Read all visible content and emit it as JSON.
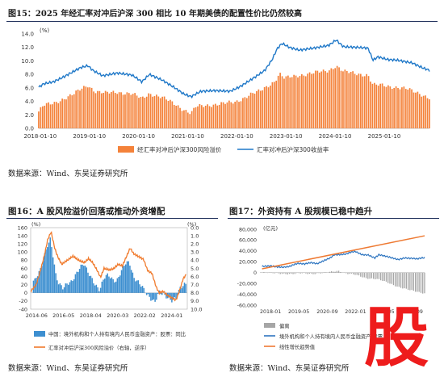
{
  "fig15": {
    "title": "图15：2025 年经汇率对冲后沪深 300 相比 10 年期美债的配置性价比仍然较高",
    "source": "数据来源：Wind、东吴证券研究所",
    "unit": "(%)",
    "chart_data": {
      "type": "bar",
      "y_ticks": [
        "14.0",
        "12.0",
        "10.0",
        "8.0",
        "6.0",
        "4.0",
        "2.0",
        "0.0"
      ],
      "ylim": [
        0,
        14
      ],
      "x_ticks": [
        "2018-01-10",
        "2019-01-10",
        "2020-01-10",
        "2021-01-10",
        "2022-01-10",
        "2023-01-10",
        "2024-01-10",
        "2025-01-10"
      ],
      "x_start": 2018.0,
      "x_end": 2025.95,
      "series": [
        {
          "name": "经汇率对冲后沪深300风险溢价",
          "type": "bar",
          "color": "#f4823a",
          "points": [
            [
              2018.0,
              2.5
            ],
            [
              2018.1,
              3.4
            ],
            [
              2018.3,
              3.7
            ],
            [
              2018.5,
              4.4
            ],
            [
              2018.7,
              5.0
            ],
            [
              2018.9,
              6.0
            ],
            [
              2019.0,
              6.4
            ],
            [
              2019.15,
              5.5
            ],
            [
              2019.35,
              5.2
            ],
            [
              2019.6,
              5.4
            ],
            [
              2019.9,
              5.1
            ],
            [
              2020.1,
              4.4
            ],
            [
              2020.25,
              5.2
            ],
            [
              2020.5,
              4.6
            ],
            [
              2020.75,
              3.7
            ],
            [
              2020.95,
              2.8
            ],
            [
              2021.1,
              2.2
            ],
            [
              2021.2,
              3.2
            ],
            [
              2021.5,
              3.5
            ],
            [
              2021.8,
              3.7
            ],
            [
              2022.0,
              3.9
            ],
            [
              2022.3,
              5.0
            ],
            [
              2022.5,
              5.5
            ],
            [
              2022.8,
              7.0
            ],
            [
              2022.9,
              8.1
            ],
            [
              2023.0,
              7.4
            ],
            [
              2023.3,
              7.9
            ],
            [
              2023.6,
              8.2
            ],
            [
              2023.9,
              8.6
            ],
            [
              2024.05,
              9.3
            ],
            [
              2024.2,
              8.4
            ],
            [
              2024.5,
              8.1
            ],
            [
              2024.7,
              7.9
            ],
            [
              2024.8,
              6.4
            ],
            [
              2025.0,
              6.4
            ],
            [
              2025.2,
              6.2
            ],
            [
              2025.5,
              5.8
            ],
            [
              2025.75,
              5.2
            ],
            [
              2025.95,
              4.5
            ]
          ]
        },
        {
          "name": "汇率对冲后沪深300收益率",
          "type": "line",
          "color": "#1f78c8",
          "points": [
            [
              2018.0,
              6.1
            ],
            [
              2018.1,
              6.6
            ],
            [
              2018.3,
              6.9
            ],
            [
              2018.5,
              7.6
            ],
            [
              2018.7,
              8.4
            ],
            [
              2018.85,
              9.0
            ],
            [
              2019.0,
              9.3
            ],
            [
              2019.1,
              8.6
            ],
            [
              2019.3,
              7.8
            ],
            [
              2019.6,
              8.2
            ],
            [
              2019.9,
              7.9
            ],
            [
              2020.1,
              6.9
            ],
            [
              2020.25,
              8.0
            ],
            [
              2020.5,
              7.2
            ],
            [
              2020.75,
              6.1
            ],
            [
              2020.95,
              5.1
            ],
            [
              2021.1,
              4.7
            ],
            [
              2021.3,
              5.5
            ],
            [
              2021.6,
              5.6
            ],
            [
              2021.9,
              5.5
            ],
            [
              2022.1,
              6.2
            ],
            [
              2022.4,
              7.6
            ],
            [
              2022.6,
              8.6
            ],
            [
              2022.75,
              10.2
            ],
            [
              2022.85,
              11.8
            ],
            [
              2022.95,
              12.6
            ],
            [
              2023.1,
              12.0
            ],
            [
              2023.3,
              11.6
            ],
            [
              2023.6,
              11.9
            ],
            [
              2023.9,
              12.3
            ],
            [
              2024.05,
              13.1
            ],
            [
              2024.2,
              12.1
            ],
            [
              2024.5,
              12.0
            ],
            [
              2024.7,
              11.9
            ],
            [
              2024.8,
              10.1
            ],
            [
              2024.9,
              10.6
            ],
            [
              2025.1,
              10.2
            ],
            [
              2025.3,
              10.1
            ],
            [
              2025.6,
              9.7
            ],
            [
              2025.8,
              9.0
            ],
            [
              2025.95,
              8.6
            ]
          ]
        }
      ]
    }
  },
  "fig16": {
    "title": "图16：A 股风险溢价回落或推动外资增配",
    "source": "数据来源：Wind、东吴证券研究所",
    "unit_left": "(%)",
    "unit_right": "(%)",
    "chart_data": {
      "type": "bar",
      "y_ticks_left": [
        "160",
        "140",
        "120",
        "100",
        "80",
        "60",
        "40",
        "20",
        "0",
        "-20",
        "-40"
      ],
      "ylim_left": [
        -40,
        160
      ],
      "y_ticks_right": [
        "0.0",
        "1.0",
        "2.0",
        "3.0",
        "4.0",
        "5.0",
        "6.0",
        "7.0",
        "8.0",
        "9.0",
        "10.0"
      ],
      "ylim_right": [
        0,
        10
      ],
      "right_axis_inverted": true,
      "x_ticks": [
        "2014-06",
        "2016-05",
        "2018-04",
        "2020-03",
        "2022-02",
        "2024-01"
      ],
      "x_start": 2014.0,
      "x_end": 2025.1,
      "series": [
        {
          "name": "中国：境外机构和个人持有境内人民币金融资产：股票：同比",
          "type": "bar",
          "color": "#3d8fd0",
          "points": [
            [
              2014.3,
              30
            ],
            [
              2014.7,
              55
            ],
            [
              2015.0,
              95
            ],
            [
              2015.2,
              120
            ],
            [
              2015.4,
              135
            ],
            [
              2015.6,
              90
            ],
            [
              2015.8,
              40
            ],
            [
              2016.0,
              20
            ],
            [
              2016.3,
              10
            ],
            [
              2016.6,
              25
            ],
            [
              2016.9,
              30
            ],
            [
              2017.2,
              45
            ],
            [
              2017.5,
              60
            ],
            [
              2017.8,
              70
            ],
            [
              2018.0,
              55
            ],
            [
              2018.3,
              40
            ],
            [
              2018.6,
              20
            ],
            [
              2018.9,
              5
            ],
            [
              2019.2,
              35
            ],
            [
              2019.5,
              45
            ],
            [
              2019.8,
              35
            ],
            [
              2020.1,
              30
            ],
            [
              2020.4,
              50
            ],
            [
              2020.7,
              70
            ],
            [
              2021.0,
              75
            ],
            [
              2021.3,
              40
            ],
            [
              2021.6,
              30
            ],
            [
              2021.9,
              15
            ],
            [
              2022.2,
              -5
            ],
            [
              2022.5,
              -15
            ],
            [
              2022.8,
              -20
            ],
            [
              2023.1,
              5
            ],
            [
              2023.4,
              -5
            ],
            [
              2023.7,
              -15
            ],
            [
              2024.0,
              -20
            ],
            [
              2024.3,
              -10
            ],
            [
              2024.6,
              15
            ],
            [
              2024.9,
              20
            ]
          ]
        },
        {
          "name": "汇率对冲后沪深300风险溢价（右轴，逆序）",
          "type": "line",
          "color": "#f07a2c",
          "axis": "right",
          "points": [
            [
              2014.0,
              7.8
            ],
            [
              2014.4,
              7.0
            ],
            [
              2014.7,
              5.2
            ],
            [
              2015.0,
              3.2
            ],
            [
              2015.2,
              1.5
            ],
            [
              2015.45,
              0.5
            ],
            [
              2015.7,
              2.5
            ],
            [
              2015.9,
              3.5
            ],
            [
              2016.2,
              4.5
            ],
            [
              2016.6,
              4.0
            ],
            [
              2017.0,
              3.5
            ],
            [
              2017.4,
              4.0
            ],
            [
              2017.8,
              4.3
            ],
            [
              2018.1,
              3.8
            ],
            [
              2018.4,
              4.3
            ],
            [
              2018.7,
              5.2
            ],
            [
              2018.95,
              6.1
            ],
            [
              2019.2,
              5.0
            ],
            [
              2019.6,
              5.2
            ],
            [
              2019.9,
              5.0
            ],
            [
              2020.2,
              4.5
            ],
            [
              2020.5,
              4.7
            ],
            [
              2020.8,
              3.5
            ],
            [
              2021.05,
              2.5
            ],
            [
              2021.3,
              3.2
            ],
            [
              2021.7,
              3.6
            ],
            [
              2022.0,
              3.9
            ],
            [
              2022.3,
              5.3
            ],
            [
              2022.6,
              5.6
            ],
            [
              2022.9,
              7.3
            ],
            [
              2023.1,
              8.0
            ],
            [
              2023.4,
              7.8
            ],
            [
              2023.7,
              8.3
            ],
            [
              2024.0,
              8.6
            ],
            [
              2024.3,
              8.9
            ],
            [
              2024.6,
              7.5
            ],
            [
              2024.8,
              6.3
            ],
            [
              2025.0,
              5.8
            ]
          ]
        }
      ]
    }
  },
  "fig17": {
    "title": "图17：外资持有 A 股规模已稳中趋升",
    "source": "数据来源：Wind、东吴证券研究所",
    "unit": "(亿元)",
    "chart_data": {
      "type": "line",
      "y_ticks": [
        "80,000",
        "60,000",
        "40,000",
        "20,000",
        "0",
        "-20,000",
        "-40,000",
        "-60,000"
      ],
      "ylim": [
        -60000,
        80000
      ],
      "x_ticks": [
        "2018-01",
        "2019-05",
        "2020-09",
        "2022-01",
        "2023-05",
        "2024-09"
      ],
      "x_start": 2017.5,
      "x_end": 2025.25,
      "series": [
        {
          "name": "偏离",
          "type": "bar",
          "color": "#a6a6a6",
          "points": [
            [
              2017.6,
              0
            ],
            [
              2018.0,
              -600
            ],
            [
              2018.5,
              -1500
            ],
            [
              2019.0,
              -2800
            ],
            [
              2019.5,
              -1000
            ],
            [
              2020.0,
              -2000
            ],
            [
              2020.5,
              -800
            ],
            [
              2020.9,
              2000
            ],
            [
              2021.2,
              3500
            ],
            [
              2021.6,
              -2000
            ],
            [
              2022.0,
              -4000
            ],
            [
              2022.5,
              -10000
            ],
            [
              2023.0,
              -12000
            ],
            [
              2023.5,
              -18000
            ],
            [
              2024.0,
              -26000
            ],
            [
              2024.5,
              -32000
            ],
            [
              2025.0,
              -36000
            ],
            [
              2025.25,
              -38000
            ]
          ]
        },
        {
          "name": "境外机构和个人持有境内人民币金融资产:股票",
          "type": "line",
          "color": "#2e75c0",
          "points": [
            [
              2017.6,
              11500
            ],
            [
              2018.0,
              12500
            ],
            [
              2018.3,
              10500
            ],
            [
              2018.6,
              10000
            ],
            [
              2018.9,
              11500
            ],
            [
              2019.1,
              15000
            ],
            [
              2019.3,
              17000
            ],
            [
              2019.6,
              16000
            ],
            [
              2019.9,
              18500
            ],
            [
              2020.2,
              16500
            ],
            [
              2020.5,
              22000
            ],
            [
              2020.8,
              27000
            ],
            [
              2021.0,
              33000
            ],
            [
              2021.2,
              33000
            ],
            [
              2021.5,
              34000
            ],
            [
              2021.8,
              38000
            ],
            [
              2022.0,
              39000
            ],
            [
              2022.3,
              33000
            ],
            [
              2022.6,
              32500
            ],
            [
              2022.9,
              27000
            ],
            [
              2023.1,
              33000
            ],
            [
              2023.4,
              30500
            ],
            [
              2023.7,
              27500
            ],
            [
              2024.0,
              24000
            ],
            [
              2024.3,
              27000
            ],
            [
              2024.6,
              26500
            ],
            [
              2024.9,
              25500
            ],
            [
              2025.1,
              27000
            ],
            [
              2025.25,
              27500
            ]
          ]
        },
        {
          "name": "线性增长趋势值",
          "type": "line",
          "color": "#ee7a33",
          "points": [
            [
              2017.6,
              7000
            ],
            [
              2025.25,
              68000
            ]
          ]
        }
      ]
    }
  },
  "stamp": "股"
}
